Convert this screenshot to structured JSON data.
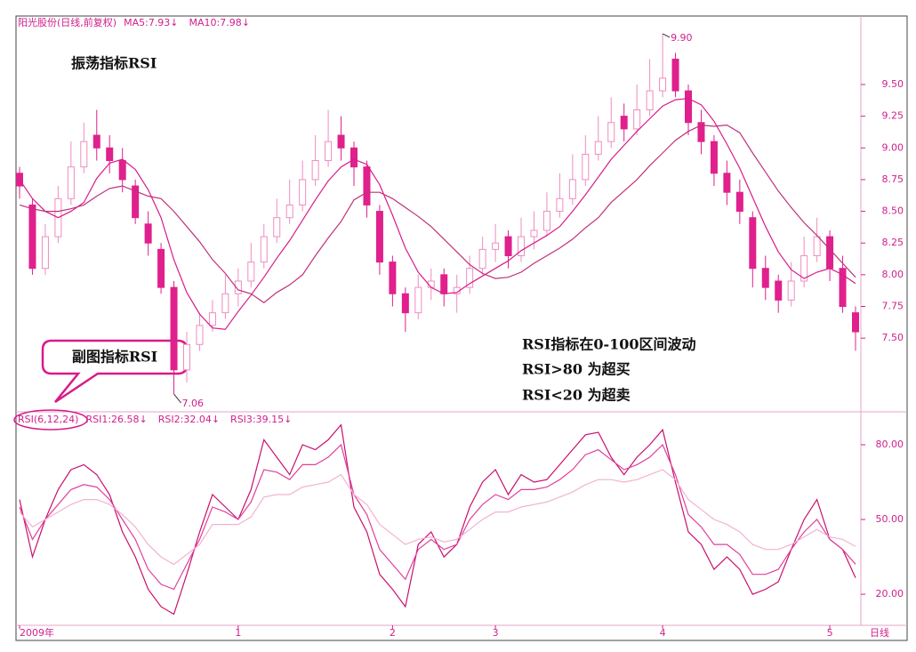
{
  "chart_data": [
    {
      "type": "candlestick",
      "title": "阳光股份(日线,前复权)",
      "annotation": "振荡指标RSI",
      "notes": [
        "RSI指标在0-100区间波动",
        "RSI>80 为超买",
        "RSI<20 为超卖"
      ],
      "callout": "副图指标RSI",
      "period_label": "日线",
      "color": "#e0208c",
      "categories": [
        "2009年",
        null,
        null,
        null,
        null,
        null,
        null,
        null,
        null,
        null,
        null,
        null,
        null,
        null,
        null,
        null,
        null,
        "1",
        null,
        null,
        null,
        null,
        null,
        null,
        null,
        null,
        null,
        null,
        null,
        "2",
        null,
        null,
        null,
        null,
        null,
        null,
        null,
        "3",
        null,
        null,
        null,
        null,
        null,
        null,
        null,
        null,
        null,
        null,
        null,
        null,
        "4",
        null,
        null,
        null,
        null,
        null,
        null,
        null,
        null,
        null,
        null,
        null,
        null,
        "5",
        null,
        null
      ],
      "candles": [
        [
          8.8,
          8.7,
          8.85,
          8.6
        ],
        [
          8.55,
          8.05,
          8.6,
          8.0
        ],
        [
          8.05,
          8.3,
          8.4,
          8.0
        ],
        [
          8.3,
          8.6,
          8.7,
          8.25
        ],
        [
          8.6,
          8.85,
          9.05,
          8.55
        ],
        [
          8.85,
          9.05,
          9.2,
          8.8
        ],
        [
          9.1,
          9.0,
          9.3,
          8.9
        ],
        [
          9.0,
          8.9,
          9.1,
          8.8
        ],
        [
          8.9,
          8.75,
          9.0,
          8.65
        ],
        [
          8.7,
          8.45,
          8.75,
          8.4
        ],
        [
          8.4,
          8.25,
          8.5,
          8.15
        ],
        [
          8.2,
          7.9,
          8.25,
          7.85
        ],
        [
          7.9,
          7.25,
          7.95,
          7.06
        ],
        [
          7.25,
          7.45,
          7.55,
          7.15
        ],
        [
          7.45,
          7.6,
          7.7,
          7.4
        ],
        [
          7.6,
          7.7,
          7.8,
          7.55
        ],
        [
          7.7,
          7.85,
          8.0,
          7.65
        ],
        [
          7.85,
          7.95,
          8.05,
          7.75
        ],
        [
          7.95,
          8.1,
          8.25,
          7.9
        ],
        [
          8.1,
          8.3,
          8.4,
          8.05
        ],
        [
          8.3,
          8.45,
          8.6,
          8.25
        ],
        [
          8.45,
          8.55,
          8.75,
          8.4
        ],
        [
          8.55,
          8.75,
          8.9,
          8.5
        ],
        [
          8.75,
          8.9,
          9.1,
          8.7
        ],
        [
          8.9,
          9.05,
          9.3,
          8.85
        ],
        [
          9.1,
          9.0,
          9.25,
          8.9
        ],
        [
          9.0,
          8.85,
          9.05,
          8.7
        ],
        [
          8.85,
          8.55,
          8.9,
          8.45
        ],
        [
          8.5,
          8.1,
          8.55,
          8.0
        ],
        [
          8.1,
          7.85,
          8.15,
          7.75
        ],
        [
          7.85,
          7.7,
          7.9,
          7.55
        ],
        [
          7.7,
          7.9,
          8.0,
          7.65
        ],
        [
          7.9,
          7.95,
          8.05,
          7.8
        ],
        [
          8.0,
          7.85,
          8.05,
          7.75
        ],
        [
          7.85,
          7.9,
          8.0,
          7.7
        ],
        [
          7.9,
          8.05,
          8.15,
          7.85
        ],
        [
          8.05,
          8.2,
          8.3,
          8.0
        ],
        [
          8.2,
          8.25,
          8.4,
          8.1
        ],
        [
          8.3,
          8.15,
          8.35,
          8.05
        ],
        [
          8.15,
          8.3,
          8.45,
          8.1
        ],
        [
          8.3,
          8.35,
          8.5,
          8.2
        ],
        [
          8.35,
          8.5,
          8.65,
          8.3
        ],
        [
          8.5,
          8.6,
          8.8,
          8.45
        ],
        [
          8.6,
          8.75,
          8.95,
          8.55
        ],
        [
          8.75,
          8.95,
          9.1,
          8.7
        ],
        [
          8.95,
          9.05,
          9.25,
          8.9
        ],
        [
          9.05,
          9.2,
          9.4,
          9.0
        ],
        [
          9.25,
          9.15,
          9.35,
          9.05
        ],
        [
          9.15,
          9.3,
          9.5,
          9.1
        ],
        [
          9.3,
          9.45,
          9.7,
          9.25
        ],
        [
          9.45,
          9.55,
          9.9,
          9.4
        ],
        [
          9.7,
          9.45,
          9.75,
          9.4
        ],
        [
          9.45,
          9.2,
          9.5,
          9.1
        ],
        [
          9.2,
          9.05,
          9.3,
          8.95
        ],
        [
          9.05,
          8.8,
          9.1,
          8.7
        ],
        [
          8.8,
          8.65,
          8.9,
          8.55
        ],
        [
          8.65,
          8.5,
          8.75,
          8.4
        ],
        [
          8.45,
          8.05,
          8.5,
          7.9
        ],
        [
          8.05,
          7.9,
          8.15,
          7.8
        ],
        [
          7.95,
          7.8,
          8.0,
          7.7
        ],
        [
          7.8,
          7.95,
          8.1,
          7.75
        ],
        [
          7.95,
          8.15,
          8.3,
          7.9
        ],
        [
          8.15,
          8.3,
          8.45,
          8.1
        ],
        [
          8.3,
          8.05,
          8.35,
          7.95
        ],
        [
          8.05,
          7.75,
          8.15,
          7.7
        ],
        [
          7.7,
          7.55,
          7.75,
          7.4
        ]
      ],
      "extremes": [
        {
          "index": 50,
          "value": 9.9,
          "label": "9.90"
        },
        {
          "index": 12,
          "value": 7.06,
          "label": "7.06"
        }
      ],
      "series": [
        {
          "name": "MA5:7.93↓",
          "color": "#d81b8a",
          "values": [
            8.75,
            8.6,
            8.5,
            8.45,
            8.5,
            8.57,
            8.76,
            8.88,
            8.91,
            8.83,
            8.67,
            8.45,
            8.12,
            7.86,
            7.69,
            7.58,
            7.57,
            7.71,
            7.84,
            7.98,
            8.13,
            8.27,
            8.43,
            8.59,
            8.74,
            8.85,
            8.91,
            8.87,
            8.71,
            8.47,
            8.21,
            8.02,
            7.9,
            7.85,
            7.86,
            7.93,
            7.99,
            8.05,
            8.11,
            8.19,
            8.25,
            8.31,
            8.38,
            8.5,
            8.63,
            8.77,
            8.91,
            9.02,
            9.13,
            9.23,
            9.33,
            9.38,
            9.39,
            9.34,
            9.21,
            9.03,
            8.84,
            8.61,
            8.38,
            8.18,
            8.04,
            7.97,
            8.02,
            8.05,
            8.0,
            7.93
          ]
        },
        {
          "name": "MA10:7.98↓",
          "color": "#c0307a",
          "values": [
            8.55,
            8.52,
            8.5,
            8.5,
            8.52,
            8.55,
            8.62,
            8.68,
            8.7,
            8.66,
            8.62,
            8.6,
            8.5,
            8.38,
            8.26,
            8.12,
            8.01,
            7.88,
            7.85,
            7.78,
            7.86,
            7.92,
            8.0,
            8.15,
            8.29,
            8.42,
            8.59,
            8.65,
            8.65,
            8.6,
            8.53,
            8.46,
            8.38,
            8.28,
            8.18,
            8.08,
            8.01,
            7.97,
            7.98,
            8.02,
            8.09,
            8.15,
            8.21,
            8.28,
            8.37,
            8.45,
            8.57,
            8.66,
            8.75,
            8.86,
            8.96,
            9.06,
            9.13,
            9.18,
            9.17,
            9.18,
            9.12,
            8.96,
            8.81,
            8.66,
            8.53,
            8.41,
            8.31,
            8.2,
            8.09,
            7.98
          ]
        }
      ],
      "ylim": [
        6.94,
        10.04
      ],
      "yticks": [
        {
          "value": 7.5,
          "label": "7.50"
        },
        {
          "value": 7.75,
          "label": "7.75"
        },
        {
          "value": 8.0,
          "label": "8.00"
        },
        {
          "value": 8.25,
          "label": "8.25"
        },
        {
          "value": 8.5,
          "label": "8.50"
        },
        {
          "value": 8.75,
          "label": "8.75"
        },
        {
          "value": 9.0,
          "label": "9.00"
        },
        {
          "value": 9.25,
          "label": "9.25"
        },
        {
          "value": 9.5,
          "label": "9.50"
        }
      ]
    },
    {
      "type": "line",
      "title": "RSI(6,12,24)",
      "series": [
        {
          "name": "RSI1:26.58↓",
          "color": "#c8106e",
          "values": [
            58,
            35,
            50,
            62,
            70,
            72,
            68,
            60,
            45,
            35,
            22,
            15,
            12,
            28,
            45,
            60,
            55,
            50,
            62,
            82,
            75,
            68,
            80,
            78,
            82,
            88,
            55,
            45,
            28,
            22,
            15,
            40,
            45,
            35,
            40,
            55,
            65,
            70,
            60,
            68,
            65,
            66,
            72,
            78,
            84,
            85,
            75,
            68,
            75,
            80,
            86,
            65,
            45,
            40,
            30,
            35,
            30,
            20,
            22,
            25,
            38,
            50,
            58,
            42,
            38,
            26.58
          ]
        },
        {
          "name": "RSI2:32.04↓",
          "color": "#e0409c",
          "values": [
            55,
            42,
            50,
            56,
            62,
            64,
            63,
            58,
            50,
            42,
            30,
            24,
            22,
            32,
            42,
            55,
            53,
            50,
            57,
            70,
            69,
            66,
            72,
            72,
            75,
            80,
            60,
            52,
            38,
            32,
            26,
            38,
            42,
            38,
            40,
            50,
            56,
            60,
            58,
            62,
            62,
            63,
            66,
            70,
            76,
            78,
            74,
            70,
            72,
            75,
            80,
            68,
            52,
            47,
            40,
            40,
            36,
            28,
            28,
            30,
            38,
            45,
            50,
            42,
            38,
            32.04
          ]
        },
        {
          "name": "RSI3:39.15↓",
          "color": "#f2b2d2",
          "values": [
            53,
            47,
            50,
            53,
            56,
            58,
            58,
            56,
            52,
            47,
            40,
            35,
            32,
            36,
            40,
            48,
            48,
            48,
            51,
            59,
            60,
            60,
            63,
            64,
            65,
            68,
            60,
            56,
            48,
            44,
            40,
            42,
            43,
            41,
            42,
            46,
            50,
            53,
            53,
            55,
            56,
            57,
            59,
            61,
            64,
            66,
            66,
            65,
            66,
            68,
            70,
            66,
            58,
            54,
            50,
            48,
            45,
            40,
            38,
            38,
            40,
            43,
            46,
            43,
            42,
            39.15
          ]
        }
      ],
      "ylim": [
        8.6,
        92.5
      ],
      "yticks": [
        {
          "value": 20,
          "label": "20.00"
        },
        {
          "value": 50,
          "label": "50.00"
        },
        {
          "value": 80,
          "label": "80.00"
        }
      ]
    }
  ]
}
